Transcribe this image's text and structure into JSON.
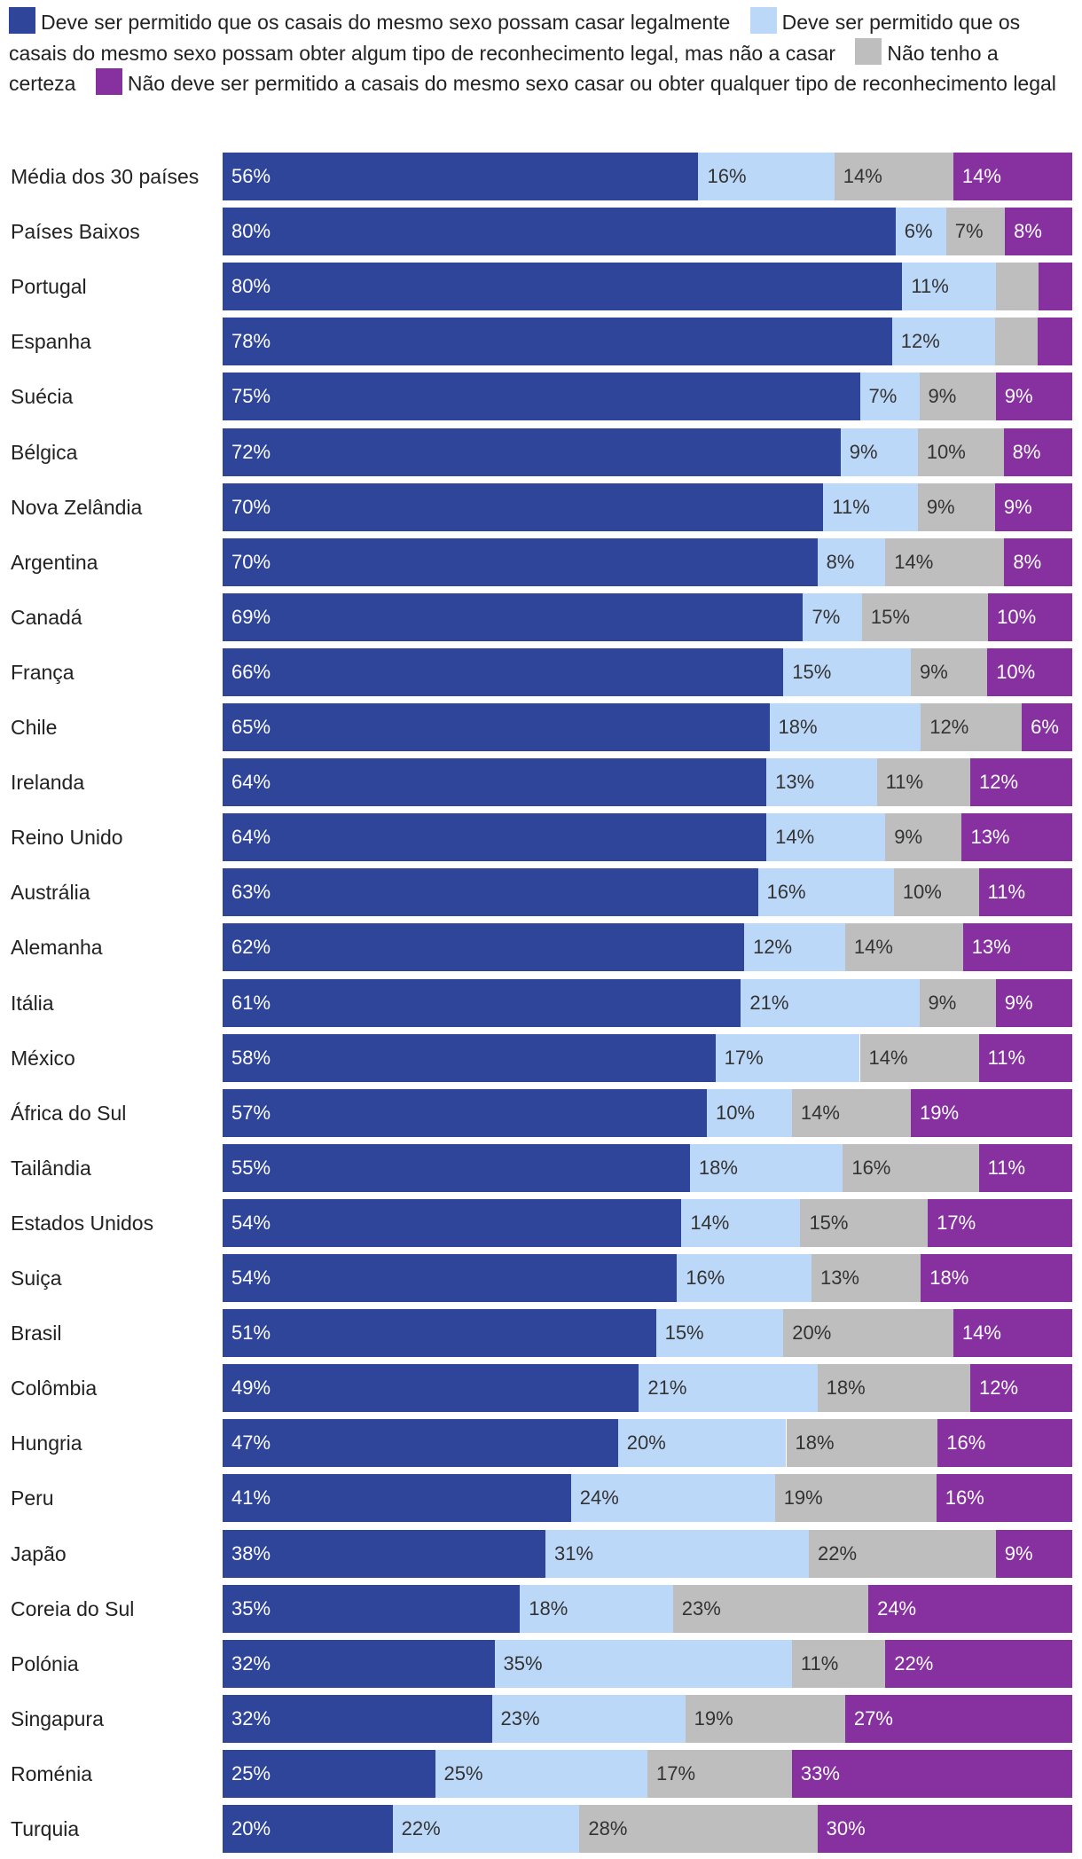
{
  "chart_data": {
    "type": "bar",
    "orientation": "horizontal",
    "stacked": true,
    "title": "",
    "xlabel": "",
    "ylabel": "",
    "xlim": [
      0,
      100
    ],
    "legend_position": "top",
    "grid": false,
    "colors": [
      "#2e4599",
      "#bcd8f8",
      "#bebebe",
      "#8730a0"
    ],
    "label_colors": [
      "#ffffff",
      "#333333",
      "#333333",
      "#ffffff"
    ],
    "categories": [
      "Média dos 30 países",
      "Países Baixos",
      "Portugal",
      "Espanha",
      "Suécia",
      "Bélgica",
      "Nova Zelândia",
      "Argentina",
      "Canadá",
      "França",
      "Chile",
      "Irelanda",
      "Reino Unido",
      "Austrália",
      "Alemanha",
      "Itália",
      "México",
      "África do Sul",
      "Tailândia",
      "Estados Unidos",
      "Suiça",
      "Brasil",
      "Colômbia",
      "Hungria",
      "Peru",
      "Japão",
      "Coreia do Sul",
      "Polónia",
      "Singapura",
      "Roménia",
      "Turquia"
    ],
    "series": [
      {
        "name": "Deve ser permitido que os casais do mesmo sexo possam casar legalmente",
        "values": [
          56,
          80,
          80,
          78,
          75,
          72,
          70,
          70,
          69,
          66,
          65,
          64,
          64,
          63,
          62,
          61,
          58,
          57,
          55,
          54,
          54,
          51,
          49,
          47,
          41,
          38,
          35,
          32,
          32,
          25,
          20
        ],
        "labels": [
          "56%",
          "80%",
          "80%",
          "78%",
          "75%",
          "72%",
          "70%",
          "70%",
          "69%",
          "66%",
          "65%",
          "64%",
          "64%",
          "63%",
          "62%",
          "61%",
          "58%",
          "57%",
          "55%",
          "54%",
          "54%",
          "51%",
          "49%",
          "47%",
          "41%",
          "38%",
          "35%",
          "32%",
          "32%",
          "25%",
          "20%"
        ]
      },
      {
        "name": "Deve ser permitido que os casais do mesmo sexo possam obter algum tipo de reconhecimento legal, mas não a casar",
        "values": [
          16,
          6,
          11,
          12,
          7,
          9,
          11,
          8,
          7,
          15,
          18,
          13,
          14,
          16,
          12,
          21,
          17,
          10,
          18,
          14,
          16,
          15,
          21,
          20,
          24,
          31,
          18,
          35,
          23,
          25,
          22
        ],
        "labels": [
          "16%",
          "6%",
          "11%",
          "12%",
          "7%",
          "9%",
          "11%",
          "8%",
          "7%",
          "15%",
          "18%",
          "13%",
          "14%",
          "16%",
          "12%",
          "21%",
          "17%",
          "10%",
          "18%",
          "14%",
          "16%",
          "15%",
          "21%",
          "20%",
          "24%",
          "31%",
          "18%",
          "35%",
          "23%",
          "25%",
          "22%"
        ]
      },
      {
        "name": "Não tenho a certeza",
        "values": [
          14,
          7,
          5,
          5,
          9,
          10,
          9,
          14,
          15,
          9,
          12,
          11,
          9,
          10,
          14,
          9,
          14,
          14,
          16,
          15,
          13,
          20,
          18,
          18,
          19,
          22,
          23,
          11,
          19,
          17,
          28
        ],
        "labels": [
          "14%",
          "7%",
          "",
          "",
          "9%",
          "10%",
          "9%",
          "14%",
          "15%",
          "9%",
          "12%",
          "11%",
          "9%",
          "10%",
          "14%",
          "9%",
          "14%",
          "14%",
          "16%",
          "15%",
          "13%",
          "20%",
          "18%",
          "18%",
          "19%",
          "22%",
          "23%",
          "11%",
          "19%",
          "17%",
          "28%"
        ]
      },
      {
        "name": "Não deve ser permitido a casais do mesmo sexo casar ou obter qualquer tipo de reconhecimento legal",
        "values": [
          14,
          8,
          4,
          4,
          9,
          8,
          9,
          8,
          10,
          10,
          6,
          12,
          13,
          11,
          13,
          9,
          11,
          19,
          11,
          17,
          18,
          14,
          12,
          16,
          16,
          9,
          24,
          22,
          27,
          33,
          30
        ],
        "labels": [
          "14%",
          "8%",
          "",
          "",
          "9%",
          "8%",
          "9%",
          "8%",
          "10%",
          "10%",
          "6%",
          "12%",
          "13%",
          "11%",
          "13%",
          "9%",
          "11%",
          "19%",
          "11%",
          "17%",
          "18%",
          "14%",
          "12%",
          "16%",
          "16%",
          "9%",
          "24%",
          "22%",
          "27%",
          "33%",
          "30%"
        ]
      }
    ]
  }
}
